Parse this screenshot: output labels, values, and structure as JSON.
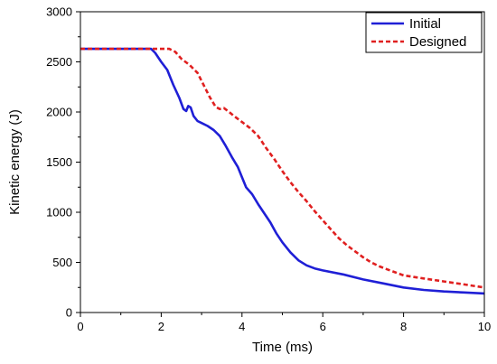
{
  "chart_data": {
    "type": "line",
    "xlabel": "Time (ms)",
    "ylabel": "Kinetic energy (J)",
    "xlim": [
      0,
      10
    ],
    "ylim": [
      0,
      3000
    ],
    "x_ticks": [
      0,
      2,
      4,
      6,
      8,
      10
    ],
    "y_ticks": [
      0,
      500,
      1000,
      1500,
      2000,
      2500,
      3000
    ],
    "grid": false,
    "legend_position": "top-right",
    "series": [
      {
        "name": "Initial",
        "color": "#1f1fd6",
        "line_style": "solid",
        "points": [
          [
            0,
            2630
          ],
          [
            1.75,
            2630
          ],
          [
            1.85,
            2590
          ],
          [
            2.0,
            2500
          ],
          [
            2.15,
            2420
          ],
          [
            2.3,
            2270
          ],
          [
            2.45,
            2140
          ],
          [
            2.55,
            2030
          ],
          [
            2.62,
            2010
          ],
          [
            2.67,
            2060
          ],
          [
            2.73,
            2045
          ],
          [
            2.8,
            1960
          ],
          [
            2.9,
            1910
          ],
          [
            3.0,
            1890
          ],
          [
            3.15,
            1860
          ],
          [
            3.3,
            1820
          ],
          [
            3.45,
            1760
          ],
          [
            3.6,
            1660
          ],
          [
            3.75,
            1550
          ],
          [
            3.9,
            1450
          ],
          [
            4.0,
            1350
          ],
          [
            4.1,
            1250
          ],
          [
            4.25,
            1180
          ],
          [
            4.4,
            1080
          ],
          [
            4.55,
            990
          ],
          [
            4.7,
            900
          ],
          [
            4.85,
            790
          ],
          [
            5.0,
            700
          ],
          [
            5.2,
            600
          ],
          [
            5.4,
            520
          ],
          [
            5.6,
            470
          ],
          [
            5.8,
            440
          ],
          [
            6.0,
            420
          ],
          [
            6.5,
            380
          ],
          [
            7.0,
            330
          ],
          [
            7.5,
            290
          ],
          [
            8.0,
            250
          ],
          [
            8.5,
            225
          ],
          [
            9.0,
            210
          ],
          [
            9.5,
            200
          ],
          [
            10.0,
            190
          ]
        ]
      },
      {
        "name": "Designed",
        "color": "#e02020",
        "line_style": "dashed",
        "points": [
          [
            0,
            2630
          ],
          [
            2.2,
            2630
          ],
          [
            2.35,
            2600
          ],
          [
            2.5,
            2530
          ],
          [
            2.7,
            2470
          ],
          [
            2.9,
            2390
          ],
          [
            3.05,
            2270
          ],
          [
            3.2,
            2150
          ],
          [
            3.35,
            2050
          ],
          [
            3.45,
            2030
          ],
          [
            3.55,
            2040
          ],
          [
            3.65,
            2010
          ],
          [
            3.8,
            1960
          ],
          [
            4.0,
            1900
          ],
          [
            4.2,
            1840
          ],
          [
            4.4,
            1760
          ],
          [
            4.6,
            1640
          ],
          [
            4.8,
            1530
          ],
          [
            5.0,
            1410
          ],
          [
            5.2,
            1300
          ],
          [
            5.4,
            1200
          ],
          [
            5.6,
            1110
          ],
          [
            5.8,
            1010
          ],
          [
            6.0,
            920
          ],
          [
            6.2,
            830
          ],
          [
            6.4,
            740
          ],
          [
            6.6,
            670
          ],
          [
            6.8,
            610
          ],
          [
            7.0,
            550
          ],
          [
            7.2,
            500
          ],
          [
            7.4,
            460
          ],
          [
            7.6,
            430
          ],
          [
            7.8,
            400
          ],
          [
            8.0,
            370
          ],
          [
            8.5,
            340
          ],
          [
            9.0,
            310
          ],
          [
            9.5,
            280
          ],
          [
            10.0,
            250
          ]
        ]
      }
    ]
  }
}
